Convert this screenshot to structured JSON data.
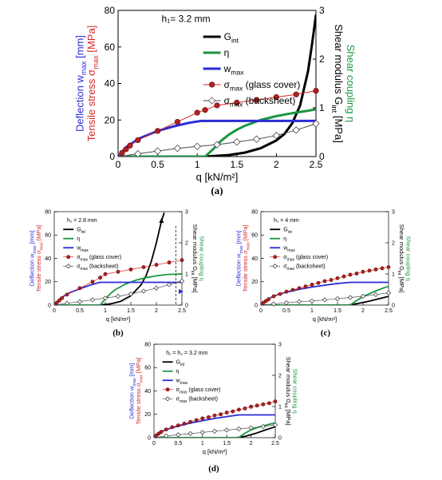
{
  "chart_data": [
    {
      "panel": "(a)",
      "type": "line",
      "annotation": "h₁= 3.2 mm",
      "xlabel": "q  [kN/m²]",
      "ylabel_left_deflection": "Deflection w",
      "ylabel_left_deflection_sub": "max",
      "ylabel_left_deflection_unit": " [mm]",
      "ylabel_left_stress": "Tensile stress σ",
      "ylabel_left_stress_sub": "max",
      "ylabel_left_stress_unit": " [MPa]",
      "ylabel_right_shear": "Shear modulus G",
      "ylabel_right_shear_sub": "int",
      "ylabel_right_shear_unit": " [MPa]",
      "ylabel_right_coupling": "Shear coupling η",
      "xlim": [
        0,
        2.5
      ],
      "ylim_left": [
        0,
        80
      ],
      "ylim_right": [
        0,
        3
      ],
      "xticks": [
        0,
        0.5,
        1,
        1.5,
        2,
        2.5
      ],
      "xtick_labels": [
        "0",
        "0.5",
        "1",
        "1.5",
        "2",
        "2.5"
      ],
      "yticks_left": [
        0,
        20,
        40,
        60,
        80
      ],
      "ytick_left_labels": [
        "0",
        "20",
        "40",
        "60",
        "80"
      ],
      "yticks_right": [
        0,
        1,
        2,
        3
      ],
      "ytick_right_labels": [
        "0",
        "1",
        "2",
        "3"
      ],
      "legend_position": "top-right",
      "series": [
        {
          "name": "G",
          "sub": "int",
          "axis": "right",
          "color": "#000000",
          "marker": "none",
          "x": [
            0,
            1.1,
            1.4,
            1.6,
            1.8,
            2.0,
            2.1,
            2.2,
            2.3,
            2.4,
            2.45,
            2.5
          ],
          "y": [
            0,
            0,
            0.03,
            0.08,
            0.17,
            0.33,
            0.46,
            0.68,
            1.05,
            1.75,
            2.3,
            2.9
          ]
        },
        {
          "name": "η",
          "sub": "",
          "axis": "right",
          "color": "#1a9641",
          "marker": "none",
          "x": [
            0,
            1.1,
            1.2,
            1.3,
            1.4,
            1.5,
            1.6,
            1.8,
            2.0,
            2.2,
            2.4,
            2.5
          ],
          "y": [
            0,
            0,
            0.15,
            0.32,
            0.45,
            0.55,
            0.63,
            0.75,
            0.83,
            0.89,
            0.94,
            0.97
          ]
        },
        {
          "name": "w",
          "sub": "max",
          "axis": "left",
          "color": "#2b2bd9",
          "marker": "none",
          "x": [
            0,
            0.1,
            0.2,
            0.3,
            0.5,
            0.7,
            0.9,
            1.05,
            1.1,
            2.5
          ],
          "y": [
            0,
            5,
            8,
            10.5,
            14,
            16.5,
            18.5,
            19.5,
            19.5,
            19.5
          ]
        },
        {
          "name": "σ",
          "sub": "max",
          "extra": " (glass cover)",
          "axis": "left",
          "color": "#c0392b",
          "marker": "filled-circle",
          "x": [
            0,
            0.05,
            0.1,
            0.15,
            0.25,
            0.5,
            0.75,
            1.0,
            1.1,
            1.25,
            1.5,
            1.75,
            2.0,
            2.25,
            2.5
          ],
          "y": [
            0,
            2,
            4,
            6,
            9,
            14,
            19,
            24,
            25.5,
            28,
            29.5,
            31,
            32.5,
            34,
            36
          ]
        },
        {
          "name": "σ",
          "sub": "max",
          "extra": " (backsheet)",
          "axis": "left",
          "color": "#4d4d4d",
          "marker": "open-diamond",
          "x": [
            0,
            0.25,
            0.5,
            0.75,
            1.0,
            1.25,
            1.5,
            1.75,
            2.0,
            2.25,
            2.5
          ],
          "y": [
            0,
            1.5,
            3,
            4.5,
            5.5,
            6.5,
            8,
            9.5,
            11.5,
            14.5,
            18
          ]
        }
      ]
    },
    {
      "panel": "(b)",
      "type": "line",
      "annotation": "h₁ = 2.8 mm",
      "xlabel": "q  [kN/m²]",
      "ylabel_left_deflection": "Deflection w",
      "ylabel_left_deflection_sub": "max",
      "ylabel_left_deflection_unit": " [mm]",
      "ylabel_left_stress": "Tensile stress σ",
      "ylabel_left_stress_sub": "max",
      "ylabel_left_stress_unit": " [MPa]",
      "ylabel_right_shear": "Shear modulus G",
      "ylabel_right_shear_sub": "int",
      "ylabel_right_shear_unit": " [MPa]",
      "ylabel_right_coupling": "Shear coupling η",
      "xlim": [
        0,
        2.5
      ],
      "ylim_left": [
        0,
        80
      ],
      "ylim_right": [
        0,
        3
      ],
      "xticks": [
        0,
        0.5,
        1,
        1.5,
        2,
        2.5
      ],
      "xtick_labels": [
        "0",
        "0.5",
        "1",
        "1.5",
        "2",
        "2.5"
      ],
      "yticks_left": [
        0,
        20,
        40,
        60,
        80
      ],
      "ytick_left_labels": [
        "0",
        "20",
        "40",
        "60",
        "80"
      ],
      "yticks_right": [
        0,
        1,
        2,
        3
      ],
      "ytick_right_labels": [
        "0",
        "1",
        "2",
        "3"
      ],
      "legend_position": "top-left",
      "series": [
        {
          "name": "G",
          "sub": "int",
          "axis": "right",
          "color": "#000000",
          "marker": "none",
          "x": [
            0,
            0.9,
            1.1,
            1.3,
            1.5,
            1.7,
            1.8,
            1.9,
            2.0,
            2.1,
            2.15
          ],
          "y": [
            0,
            0,
            0.04,
            0.12,
            0.3,
            0.65,
            0.95,
            1.4,
            2.0,
            2.7,
            2.95
          ]
        },
        {
          "name": "η",
          "sub": "",
          "axis": "right",
          "color": "#1a9641",
          "marker": "none",
          "x": [
            0,
            0.9,
            1.0,
            1.1,
            1.2,
            1.4,
            1.6,
            1.8,
            2.0,
            2.2,
            2.5
          ],
          "y": [
            0,
            0,
            0.2,
            0.37,
            0.5,
            0.68,
            0.8,
            0.88,
            0.94,
            0.98,
            1.0
          ]
        },
        {
          "name": "w",
          "sub": "max",
          "axis": "left",
          "color": "#2b2bd9",
          "marker": "none",
          "x": [
            0,
            0.1,
            0.2,
            0.3,
            0.5,
            0.7,
            0.85,
            0.9,
            2.5
          ],
          "y": [
            0,
            5,
            8,
            10.5,
            14,
            17,
            19,
            19.5,
            19.5
          ]
        },
        {
          "name": "σ",
          "sub": "max",
          "extra": " (glass cover)",
          "axis": "left",
          "color": "#c0392b",
          "marker": "filled-circle",
          "x": [
            0,
            0.05,
            0.1,
            0.15,
            0.25,
            0.5,
            0.75,
            0.9,
            1.0,
            1.25,
            1.5,
            1.75,
            2.0,
            2.25,
            2.5
          ],
          "y": [
            0,
            2,
            4,
            6,
            9,
            14.5,
            20,
            23.5,
            26.5,
            28.5,
            30.5,
            32.5,
            34.5,
            36.5,
            38.5
          ]
        },
        {
          "name": "σ",
          "sub": "max",
          "extra": " (backsheet)",
          "axis": "left",
          "color": "#4d4d4d",
          "marker": "open-diamond",
          "x": [
            0,
            0.25,
            0.5,
            0.75,
            1.0,
            1.25,
            1.5,
            1.75,
            2.0,
            2.25,
            2.5
          ],
          "y": [
            0,
            1.5,
            3,
            4.5,
            6,
            7.5,
            9.5,
            12,
            14.5,
            17.5,
            20.5
          ]
        }
      ]
    },
    {
      "panel": "(c)",
      "type": "line",
      "annotation": "h₁ = 4 mm",
      "xlabel": "q  [kN/m²]",
      "ylabel_left_deflection": "Deflection w",
      "ylabel_left_deflection_sub": "max",
      "ylabel_left_deflection_unit": " [mm]",
      "ylabel_left_stress": "Tensile stress σ",
      "ylabel_left_stress_sub": "max",
      "ylabel_left_stress_unit": " [MPa]",
      "ylabel_right_shear": "Shear modulus G",
      "ylabel_right_shear_sub": "int",
      "ylabel_right_shear_unit": " [MPa]",
      "ylabel_right_coupling": "Shear coupling η",
      "xlim": [
        0,
        2.5
      ],
      "ylim_left": [
        0,
        80
      ],
      "ylim_right": [
        0,
        3
      ],
      "xticks": [
        0,
        0.5,
        1,
        1.5,
        2,
        2.5
      ],
      "xtick_labels": [
        "0",
        "0.5",
        "1",
        "1.5",
        "2",
        "2.5"
      ],
      "yticks_left": [
        0,
        20,
        40,
        60,
        80
      ],
      "ytick_left_labels": [
        "0",
        "20",
        "40",
        "60",
        "80"
      ],
      "yticks_right": [
        0,
        1,
        2,
        3
      ],
      "ytick_right_labels": [
        "0",
        "1",
        "2",
        "3"
      ],
      "legend_position": "top-left",
      "series": [
        {
          "name": "G",
          "sub": "int",
          "axis": "right",
          "color": "#000000",
          "marker": "none",
          "x": [
            0,
            1.7,
            1.9,
            2.1,
            2.3,
            2.5
          ],
          "y": [
            0,
            0,
            0.05,
            0.12,
            0.2,
            0.28
          ]
        },
        {
          "name": "η",
          "sub": "",
          "axis": "right",
          "color": "#1a9641",
          "marker": "none",
          "x": [
            0,
            1.75,
            1.85,
            2.0,
            2.2,
            2.4,
            2.5
          ],
          "y": [
            0,
            0,
            0.12,
            0.27,
            0.42,
            0.55,
            0.6
          ]
        },
        {
          "name": "w",
          "sub": "max",
          "axis": "left",
          "color": "#2b2bd9",
          "marker": "none",
          "x": [
            0,
            0.1,
            0.2,
            0.3,
            0.5,
            0.75,
            1.0,
            1.25,
            1.5,
            1.75,
            2.5
          ],
          "y": [
            0,
            4,
            6.5,
            8.5,
            11,
            13.5,
            15.5,
            17,
            18.5,
            19.5,
            19.5
          ]
        },
        {
          "name": "σ",
          "sub": "max",
          "extra": " (glass cover)",
          "axis": "left",
          "color": "#c0392b",
          "marker": "filled-circle",
          "x": [
            0,
            0.05,
            0.1,
            0.15,
            0.25,
            0.375,
            0.5,
            0.625,
            0.75,
            0.875,
            1.0,
            1.125,
            1.25,
            1.375,
            1.5,
            1.625,
            1.75,
            1.875,
            2.0,
            2.125,
            2.25,
            2.375,
            2.5
          ],
          "y": [
            0,
            2,
            3.5,
            5,
            7.5,
            9.5,
            11.5,
            13,
            14.5,
            16,
            17.5,
            19,
            20.5,
            21.5,
            23,
            24.5,
            26,
            27,
            28.5,
            29.5,
            30.5,
            31.5,
            32.5
          ]
        },
        {
          "name": "σ",
          "sub": "max",
          "extra": " (backsheet)",
          "axis": "left",
          "color": "#4d4d4d",
          "marker": "open-diamond",
          "x": [
            0,
            0.25,
            0.5,
            0.75,
            1.0,
            1.25,
            1.5,
            1.75,
            2.0,
            2.25,
            2.5
          ],
          "y": [
            0,
            1,
            2,
            3,
            3.5,
            4.5,
            5.5,
            6.5,
            7.5,
            9,
            10.5
          ]
        }
      ]
    },
    {
      "panel": "(d)",
      "type": "line",
      "annotation": "h₁ = h₂ = 3.2 mm",
      "xlabel": "q  [kN/m²]",
      "ylabel_left_deflection": "Deflection w",
      "ylabel_left_deflection_sub": "max",
      "ylabel_left_deflection_unit": " [mm]",
      "ylabel_left_stress": "Tensile stress σ",
      "ylabel_left_stress_sub": "max",
      "ylabel_left_stress_unit": " [MPa]",
      "ylabel_right_shear": "Shear modulus G",
      "ylabel_right_shear_sub": "int",
      "ylabel_right_shear_unit": " [MPa]",
      "ylabel_right_coupling": "Shear coupling η",
      "xlim": [
        0,
        2.5
      ],
      "ylim_left": [
        0,
        80
      ],
      "ylim_right": [
        0,
        3
      ],
      "xticks": [
        0,
        0.5,
        1,
        1.5,
        2,
        2.5
      ],
      "xtick_labels": [
        "0",
        "0.5",
        "1",
        "1.5",
        "2",
        "2.5"
      ],
      "yticks_left": [
        0,
        20,
        40,
        60,
        80
      ],
      "ytick_left_labels": [
        "0",
        "20",
        "40",
        "60",
        "80"
      ],
      "yticks_right": [
        0,
        1,
        2,
        3
      ],
      "ytick_right_labels": [
        "0",
        "1",
        "2",
        "3"
      ],
      "legend_position": "top-left",
      "series": [
        {
          "name": "G",
          "sub": "int",
          "axis": "right",
          "color": "#000000",
          "marker": "none",
          "x": [
            0,
            1.7,
            1.9,
            2.1,
            2.3,
            2.5
          ],
          "y": [
            0,
            0,
            0.05,
            0.14,
            0.25,
            0.35
          ]
        },
        {
          "name": "η",
          "sub": "",
          "axis": "right",
          "color": "#1a9641",
          "marker": "none",
          "x": [
            0,
            1.75,
            1.85,
            2.0,
            2.2,
            2.4,
            2.5
          ],
          "y": [
            0,
            0,
            0.12,
            0.25,
            0.36,
            0.44,
            0.47
          ]
        },
        {
          "name": "w",
          "sub": "max",
          "axis": "left",
          "color": "#2b2bd9",
          "marker": "none",
          "x": [
            0,
            0.1,
            0.2,
            0.3,
            0.5,
            0.75,
            1.0,
            1.25,
            1.5,
            1.75,
            2.5
          ],
          "y": [
            0,
            3.5,
            6,
            7.5,
            10,
            12.5,
            14.5,
            16.5,
            18,
            19.5,
            19.5
          ]
        },
        {
          "name": "σ",
          "sub": "max",
          "extra": " (glass cover)",
          "axis": "left",
          "color": "#c0392b",
          "marker": "filled-circle",
          "x": [
            0,
            0.05,
            0.1,
            0.15,
            0.25,
            0.375,
            0.5,
            0.625,
            0.75,
            0.875,
            1.0,
            1.125,
            1.25,
            1.375,
            1.5,
            1.625,
            1.75,
            1.875,
            2.0,
            2.125,
            2.25,
            2.375,
            2.5
          ],
          "y": [
            0,
            2,
            3.5,
            5,
            7,
            9,
            10.5,
            12,
            13.5,
            15,
            16.5,
            17.5,
            19,
            20,
            21.5,
            22.5,
            24,
            25,
            26.5,
            27.5,
            28.5,
            29.5,
            31
          ]
        },
        {
          "name": "σ",
          "sub": "max",
          "extra": " (backsheet)",
          "axis": "left",
          "color": "#4d4d4d",
          "marker": "open-diamond",
          "x": [
            0,
            0.25,
            0.5,
            0.75,
            1.0,
            1.25,
            1.5,
            1.75,
            2.0,
            2.25,
            2.5
          ],
          "y": [
            0,
            1.5,
            2.5,
            3.5,
            4.5,
            5.5,
            6.5,
            7.5,
            8.5,
            9.5,
            11
          ]
        }
      ]
    }
  ]
}
